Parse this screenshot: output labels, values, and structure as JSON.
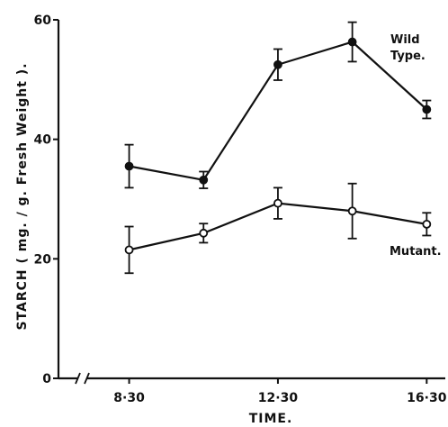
{
  "chart_data": {
    "type": "line",
    "xlabel": "TIME.",
    "ylabel": "STARCH ( mg. / g. Fresh Weight ).",
    "ylim": [
      0,
      60
    ],
    "xlim": [
      6.6,
      17.0
    ],
    "x_ticks": [
      {
        "value": 8.5,
        "label": "8·30"
      },
      {
        "value": 12.5,
        "label": "12·30"
      },
      {
        "value": 16.5,
        "label": "16·30"
      }
    ],
    "y_ticks": [
      {
        "value": 0,
        "label": "0"
      },
      {
        "value": 20,
        "label": "20"
      },
      {
        "value": 40,
        "label": "40"
      },
      {
        "value": 60,
        "label": "60"
      }
    ],
    "axis_break": true,
    "series": [
      {
        "name": "Wild Type.",
        "name_lines": [
          "Wild",
          "Type."
        ],
        "marker": "filled-circle",
        "color": "#111111",
        "points": [
          {
            "x": 8.5,
            "y": 35.5,
            "err": 3.6
          },
          {
            "x": 10.5,
            "y": 33.2,
            "err": 1.4
          },
          {
            "x": 12.5,
            "y": 52.5,
            "err": 2.6
          },
          {
            "x": 14.5,
            "y": 56.3,
            "err": 3.3
          },
          {
            "x": 16.5,
            "y": 45.0,
            "err": 1.5
          }
        ]
      },
      {
        "name": "Mutant.",
        "name_lines": [
          "Mutant."
        ],
        "marker": "open-circle",
        "color": "#111111",
        "points": [
          {
            "x": 8.5,
            "y": 21.5,
            "err": 3.9
          },
          {
            "x": 10.5,
            "y": 24.3,
            "err": 1.6
          },
          {
            "x": 12.5,
            "y": 29.3,
            "err": 2.6
          },
          {
            "x": 14.5,
            "y": 28.0,
            "err": 4.6
          },
          {
            "x": 16.5,
            "y": 25.8,
            "err": 1.9
          }
        ]
      }
    ]
  }
}
